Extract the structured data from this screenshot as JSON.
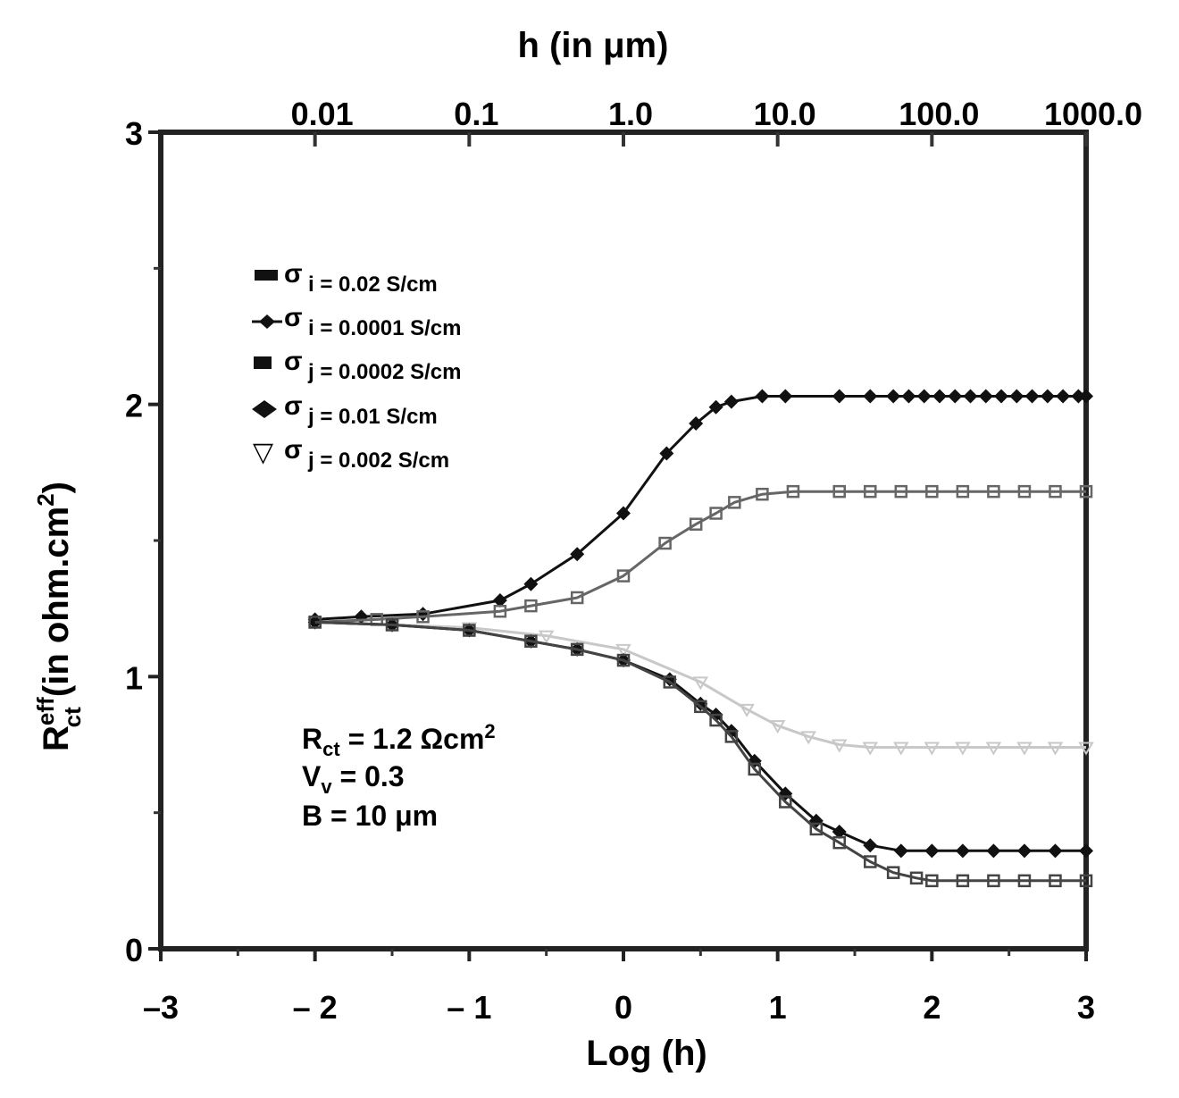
{
  "chart_data": {
    "type": "line",
    "title": "",
    "top_axis_title": "h (in μm)",
    "top_tick_labels": [
      {
        "x": -2,
        "label": "0.01"
      },
      {
        "x": -1,
        "label": "0.1"
      },
      {
        "x": 0,
        "label": "1.0"
      },
      {
        "x": 1,
        "label": "10.0"
      },
      {
        "x": 2,
        "label": "100.0"
      },
      {
        "x": 3,
        "label": "1000.0"
      }
    ],
    "xlabel": "Log (h)",
    "ylabel": {
      "main": "R",
      "sup": "eff",
      "sub": "ct",
      "rest": " (in ohm.cm",
      "unit_sup": "2",
      "close": ")"
    },
    "xlim": [
      -3,
      3
    ],
    "ylim": [
      0,
      3
    ],
    "x_ticks": [
      {
        "value": -3,
        "label": "–3"
      },
      {
        "value": -2,
        "label": "– 2"
      },
      {
        "value": -1,
        "label": "– 1"
      },
      {
        "value": 0,
        "label": "0"
      },
      {
        "value": 1,
        "label": "1"
      },
      {
        "value": 2,
        "label": "2"
      },
      {
        "value": 3,
        "label": "3"
      }
    ],
    "y_ticks": [
      {
        "value": 0,
        "label": "0"
      },
      {
        "value": 1,
        "label": "1"
      },
      {
        "value": 2,
        "label": "2"
      },
      {
        "value": 3,
        "label": "3"
      }
    ],
    "grid": false,
    "legend_position": "top-left",
    "legend": [
      {
        "marker": "dash",
        "sym": "σ",
        "sub": "i = 0.02 S/cm"
      },
      {
        "marker": "diamond-line",
        "sym": "σ",
        "sub": "i = 0.0001 S/cm"
      },
      {
        "marker": "square",
        "sym": "σ",
        "sub": "j = 0.0002 S/cm"
      },
      {
        "marker": "diamond",
        "sym": "σ",
        "sub": "j = 0.01 S/cm"
      },
      {
        "marker": "triangle-down",
        "sym": "▽",
        "sub_sym": "σ",
        "sub": "j = 0.002 S/cm"
      }
    ],
    "annotations": [
      {
        "main": "R",
        "sub": "ct",
        "text": " = 1.2 Ωcm",
        "sup": "2"
      },
      {
        "main": "V",
        "sub": "v",
        "text": " = 0.3",
        "sup": ""
      },
      {
        "main": "B = 10 μm",
        "sub": "",
        "text": "",
        "sup": ""
      }
    ],
    "series": [
      {
        "name": "σj = 0.01 S/cm (upper)",
        "color": "#111111",
        "marker": "diamond",
        "x": [
          -2.0,
          -1.7,
          -1.3,
          -0.8,
          -0.6,
          -0.3,
          0.0,
          0.28,
          0.47,
          0.6,
          0.7,
          0.9,
          1.05,
          1.4,
          1.6,
          1.75,
          1.85,
          1.95,
          2.05,
          2.15,
          2.25,
          2.35,
          2.45,
          2.55,
          2.65,
          2.75,
          2.85,
          2.95,
          3.0
        ],
        "values": [
          1.21,
          1.22,
          1.23,
          1.28,
          1.34,
          1.45,
          1.6,
          1.82,
          1.93,
          1.99,
          2.01,
          2.03,
          2.03,
          2.03,
          2.03,
          2.03,
          2.03,
          2.03,
          2.03,
          2.03,
          2.03,
          2.03,
          2.03,
          2.03,
          2.03,
          2.03,
          2.03,
          2.03,
          2.03
        ]
      },
      {
        "name": "σi = 0.02 S/cm (middle upper)",
        "color": "#666666",
        "marker": "square",
        "x": [
          -2.0,
          -1.6,
          -1.3,
          -0.8,
          -0.6,
          -0.3,
          0.0,
          0.27,
          0.47,
          0.6,
          0.72,
          0.9,
          1.1,
          1.4,
          1.6,
          1.8,
          2.0,
          2.2,
          2.4,
          2.6,
          2.8,
          3.0
        ],
        "values": [
          1.2,
          1.21,
          1.22,
          1.24,
          1.26,
          1.29,
          1.37,
          1.49,
          1.56,
          1.6,
          1.64,
          1.67,
          1.68,
          1.68,
          1.68,
          1.68,
          1.68,
          1.68,
          1.68,
          1.68,
          1.68,
          1.68
        ]
      },
      {
        "name": "σj = 0.002 S/cm (faint lower)",
        "color": "#c8c8c8",
        "marker": "triangle-down",
        "x": [
          -2.0,
          -1.5,
          -1.0,
          -0.5,
          0.0,
          0.5,
          0.8,
          1.0,
          1.2,
          1.4,
          1.6,
          1.8,
          2.0,
          2.2,
          2.4,
          2.6,
          2.8,
          3.0
        ],
        "values": [
          1.2,
          1.19,
          1.18,
          1.15,
          1.1,
          0.98,
          0.88,
          0.82,
          0.78,
          0.75,
          0.74,
          0.74,
          0.74,
          0.74,
          0.74,
          0.74,
          0.74,
          0.74
        ]
      },
      {
        "name": "σi = 0.0001 S/cm (lower)",
        "color": "#111111",
        "marker": "diamond",
        "x": [
          -2.0,
          -1.5,
          -1.0,
          -0.6,
          -0.3,
          0.0,
          0.3,
          0.5,
          0.6,
          0.7,
          0.85,
          1.05,
          1.25,
          1.4,
          1.6,
          1.8,
          2.0,
          2.2,
          2.4,
          2.6,
          2.8,
          3.0
        ],
        "values": [
          1.2,
          1.19,
          1.17,
          1.13,
          1.1,
          1.06,
          0.99,
          0.9,
          0.86,
          0.8,
          0.69,
          0.57,
          0.47,
          0.43,
          0.38,
          0.36,
          0.36,
          0.36,
          0.36,
          0.36,
          0.36,
          0.36
        ]
      },
      {
        "name": "σj = 0.0002 S/cm (lowest)",
        "color": "#444444",
        "marker": "square",
        "x": [
          -2.0,
          -1.5,
          -1.0,
          -0.6,
          -0.3,
          0.0,
          0.3,
          0.5,
          0.6,
          0.7,
          0.85,
          1.05,
          1.25,
          1.4,
          1.6,
          1.75,
          1.9,
          2.0,
          2.2,
          2.4,
          2.6,
          2.8,
          3.0
        ],
        "values": [
          1.2,
          1.19,
          1.17,
          1.13,
          1.1,
          1.06,
          0.98,
          0.89,
          0.84,
          0.78,
          0.66,
          0.54,
          0.44,
          0.39,
          0.32,
          0.28,
          0.26,
          0.25,
          0.25,
          0.25,
          0.25,
          0.25,
          0.25
        ]
      }
    ]
  }
}
